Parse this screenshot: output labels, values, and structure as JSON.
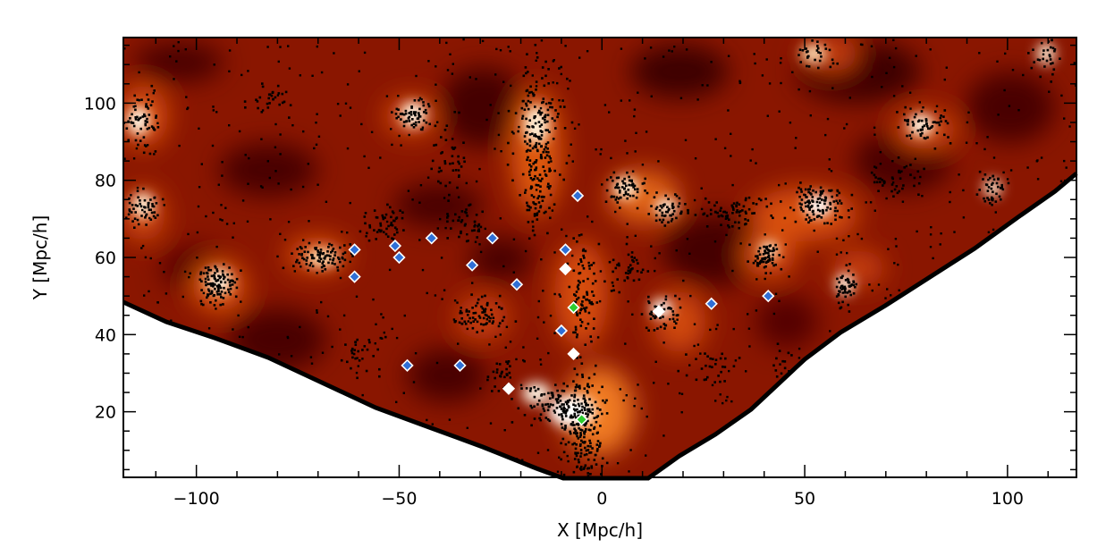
{
  "chart_data": {
    "type": "scatter",
    "title": "",
    "xlabel": "X [Mpc/h]",
    "ylabel": "Y [Mpc/h]",
    "xlim": [
      -118,
      117
    ],
    "ylim": [
      3,
      117
    ],
    "x_ticks": [
      -100,
      -50,
      0,
      50,
      100
    ],
    "y_ticks": [
      20,
      40,
      60,
      80,
      100
    ],
    "x_tick_labels": [
      "−100",
      "−50",
      "0",
      "50",
      "100"
    ],
    "y_tick_labels": [
      "20",
      "40",
      "60",
      "80",
      "100"
    ],
    "grid": false,
    "legend": "none",
    "background": "density contour map (dark red to white) of the survey cone, with black galaxy points",
    "colors": {
      "void": "#3a0000",
      "low": "#6e0e00",
      "mid": "#b82c00",
      "high": "#f07020",
      "peak": "#fff6e6",
      "galaxies": "#000000",
      "blue_markers": "#2f6fd6",
      "white_markers": "#ffffff",
      "green_markers": "#2ecc2e"
    },
    "series": [
      {
        "marker": "diamond",
        "color": "#2f6fd6",
        "points": [
          {
            "x": -61,
            "y": 62
          },
          {
            "x": -51,
            "y": 63
          },
          {
            "x": -50,
            "y": 60
          },
          {
            "x": -42,
            "y": 65
          },
          {
            "x": -27,
            "y": 65
          },
          {
            "x": -32,
            "y": 58
          },
          {
            "x": -21,
            "y": 53
          },
          {
            "x": -9,
            "y": 62
          },
          {
            "x": -6,
            "y": 76
          },
          {
            "x": -61,
            "y": 55
          },
          {
            "x": -10,
            "y": 41
          },
          {
            "x": -48,
            "y": 32
          },
          {
            "x": -35,
            "y": 32
          },
          {
            "x": 27,
            "y": 48
          },
          {
            "x": 41,
            "y": 50
          }
        ]
      },
      {
        "marker": "diamond",
        "color": "#ffffff",
        "points": [
          {
            "x": -9,
            "y": 57
          },
          {
            "x": -7,
            "y": 35
          },
          {
            "x": 14,
            "y": 46
          },
          {
            "x": -23,
            "y": 26
          }
        ]
      },
      {
        "marker": "diamond",
        "color": "#2ecc2e",
        "points": [
          {
            "x": -7,
            "y": 47
          },
          {
            "x": -5,
            "y": 18
          }
        ]
      }
    ]
  }
}
